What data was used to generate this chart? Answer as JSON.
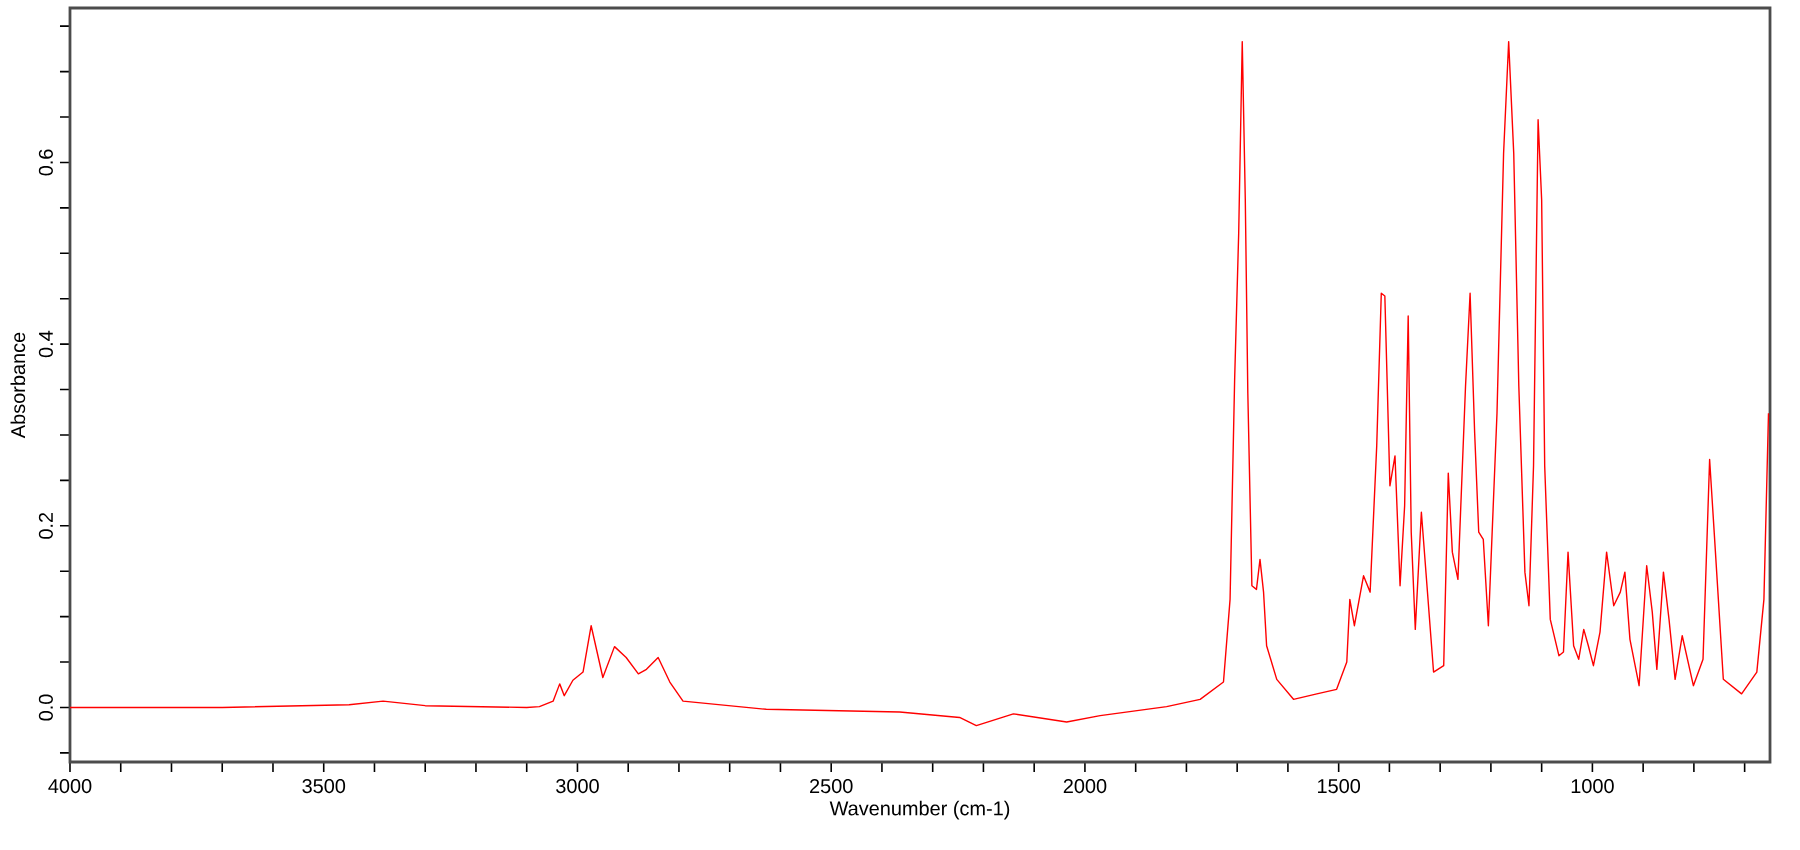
{
  "chart_data": {
    "type": "line",
    "xlabel": "Wavenumber (cm-1)",
    "ylabel": "Absorbance",
    "xlim": [
      4000,
      650
    ],
    "ylim": [
      -0.06,
      0.77
    ],
    "xticks": [
      4000,
      {
        "value": 3900,
        "label": null
      },
      {
        "value": 3800,
        "label": null
      },
      {
        "value": 3700,
        "label": null
      },
      {
        "value": 3600,
        "label": null
      },
      3500,
      {
        "value": 3400,
        "label": null
      },
      {
        "value": 3300,
        "label": null
      },
      {
        "value": 3200,
        "label": null
      },
      {
        "value": 3100,
        "label": null
      },
      3000,
      {
        "value": 2900,
        "label": null
      },
      {
        "value": 2800,
        "label": null
      },
      {
        "value": 2700,
        "label": null
      },
      {
        "value": 2600,
        "label": null
      },
      2500,
      {
        "value": 2400,
        "label": null
      },
      {
        "value": 2300,
        "label": null
      },
      {
        "value": 2200,
        "label": null
      },
      {
        "value": 2100,
        "label": null
      },
      2000,
      {
        "value": 1900,
        "label": null
      },
      {
        "value": 1800,
        "label": null
      },
      {
        "value": 1700,
        "label": null
      },
      {
        "value": 1600,
        "label": null
      },
      1500,
      {
        "value": 1400,
        "label": null
      },
      {
        "value": 1300,
        "label": null
      },
      {
        "value": 1200,
        "label": null
      },
      {
        "value": 1100,
        "label": null
      },
      1000,
      {
        "value": 900,
        "label": null
      },
      {
        "value": 800,
        "label": null
      },
      {
        "value": 700,
        "label": null
      }
    ],
    "yticks": [
      {
        "value": -0.05,
        "label": null
      },
      {
        "value": 0,
        "label": "0.0"
      },
      {
        "value": 0.05,
        "label": null
      },
      {
        "value": 0.1,
        "label": null
      },
      {
        "value": 0.15,
        "label": null
      },
      0.2,
      {
        "value": 0.25,
        "label": null
      },
      {
        "value": 0.3,
        "label": null
      },
      {
        "value": 0.35,
        "label": null
      },
      0.4,
      {
        "value": 0.45,
        "label": null
      },
      {
        "value": 0.5,
        "label": null
      },
      {
        "value": 0.55,
        "label": null
      },
      0.6,
      {
        "value": 0.65,
        "label": null
      },
      {
        "value": 0.7,
        "label": null
      },
      {
        "value": 0.75,
        "label": null
      }
    ],
    "grid": false,
    "marker": "none",
    "line_style": "solid",
    "series": [
      {
        "color": "#ff0000",
        "x": [
          4000,
          3700,
          3450,
          3383,
          3300,
          3100,
          3075,
          3048,
          3035,
          3026,
          3009,
          2989,
          2973,
          2950,
          2927,
          2904,
          2880,
          2864,
          2841,
          2818,
          2792,
          2628,
          2365,
          2247,
          2214,
          2141,
          2036,
          1970,
          1839,
          1773,
          1727,
          1714,
          1705,
          1697,
          1690,
          1684,
          1679,
          1671,
          1662,
          1655,
          1648,
          1642,
          1622,
          1589,
          1543,
          1504,
          1484,
          1478,
          1469,
          1451,
          1438,
          1425,
          1416,
          1409,
          1399,
          1389,
          1379,
          1370,
          1363,
          1357,
          1349,
          1337,
          1313,
          1293,
          1284,
          1276,
          1265,
          1250,
          1241,
          1232,
          1224,
          1215,
          1205,
          1188,
          1175,
          1165,
          1155,
          1145,
          1133,
          1125,
          1116,
          1107,
          1100,
          1094,
          1083,
          1066,
          1057,
          1048,
          1037,
          1027,
          1017,
          1008,
          998,
          985,
          972,
          958,
          945,
          936,
          926,
          908,
          893,
          882,
          873,
          860,
          849,
          837,
          823,
          801,
          782,
          769,
          760,
          742,
          706,
          676,
          662,
          653
        ],
        "values": [
          0.0,
          0.0,
          0.003,
          0.007,
          0.002,
          0.0,
          0.001,
          0.007,
          0.026,
          0.013,
          0.03,
          0.039,
          0.09,
          0.033,
          0.067,
          0.055,
          0.037,
          0.042,
          0.055,
          0.028,
          0.007,
          -0.002,
          -0.005,
          -0.011,
          -0.02,
          -0.007,
          -0.016,
          -0.009,
          0.001,
          0.009,
          0.028,
          0.119,
          0.361,
          0.522,
          0.733,
          0.559,
          0.346,
          0.134,
          0.13,
          0.163,
          0.127,
          0.068,
          0.031,
          0.009,
          0.015,
          0.02,
          0.05,
          0.119,
          0.09,
          0.145,
          0.127,
          0.288,
          0.456,
          0.453,
          0.244,
          0.277,
          0.134,
          0.222,
          0.431,
          0.193,
          0.086,
          0.215,
          0.039,
          0.046,
          0.258,
          0.171,
          0.141,
          0.354,
          0.456,
          0.302,
          0.193,
          0.185,
          0.09,
          0.324,
          0.61,
          0.733,
          0.61,
          0.354,
          0.149,
          0.112,
          0.266,
          0.647,
          0.559,
          0.266,
          0.097,
          0.057,
          0.061,
          0.171,
          0.068,
          0.053,
          0.086,
          0.068,
          0.046,
          0.083,
          0.171,
          0.112,
          0.127,
          0.149,
          0.075,
          0.024,
          0.156,
          0.105,
          0.042,
          0.149,
          0.097,
          0.031,
          0.079,
          0.024,
          0.053,
          0.273,
          0.193,
          0.031,
          0.015,
          0.039,
          0.119,
          0.324
        ]
      }
    ]
  }
}
